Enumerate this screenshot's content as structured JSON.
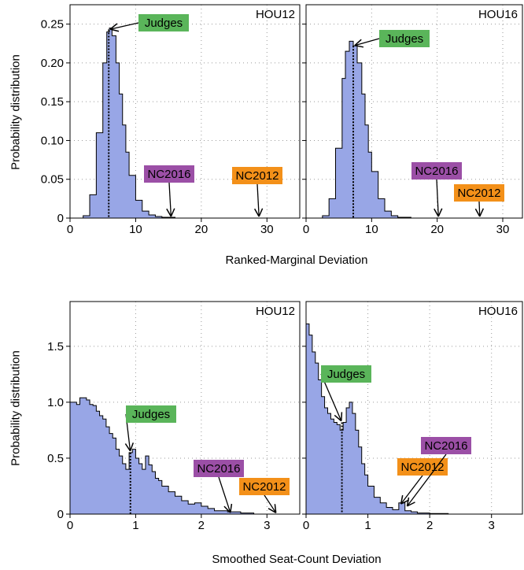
{
  "colors": {
    "fill": "#98a6e6",
    "stroke": "#000000",
    "judges": "#5ab55a",
    "nc2016": "#9b4fa6",
    "nc2012": "#f39019",
    "grid": "#9a9a9a"
  },
  "labels": {
    "top_xlabel": "Ranked-Marginal Deviation",
    "bottom_xlabel": "Smoothed Seat-Count Deviation",
    "top_ylabel": "Probability distribution",
    "bottom_ylabel": "Probability distribution"
  },
  "chart_data": [
    {
      "type": "histogram",
      "panel": "top-left",
      "title": "HOU12",
      "xlim": [
        0,
        35
      ],
      "ylim": [
        0,
        0.275
      ],
      "xticks": [
        0,
        10,
        20,
        30
      ],
      "yticks": [
        0,
        0.05,
        0.1,
        0.15,
        0.2,
        0.25
      ],
      "ytick_labels": [
        "0",
        "0.05",
        "0.10",
        "0.15",
        "0.20",
        "0.25"
      ],
      "grid": true,
      "curve": {
        "x": [
          1,
          2,
          3,
          4,
          5,
          5.6,
          6,
          6.4,
          7,
          7.5,
          8,
          8.5,
          9,
          10,
          11,
          12,
          13,
          14,
          16
        ],
        "y": [
          0,
          0.003,
          0.03,
          0.11,
          0.2,
          0.24,
          0.245,
          0.235,
          0.2,
          0.16,
          0.12,
          0.085,
          0.055,
          0.023,
          0.009,
          0.004,
          0.002,
          0.001,
          0
        ]
      },
      "markers": [
        {
          "label": "Judges",
          "x": 5.9,
          "y": 0.243,
          "color": "judges",
          "dotted": true
        },
        {
          "label": "NC2016",
          "x": 15.4,
          "y": 0,
          "color": "nc2016"
        },
        {
          "label": "NC2012",
          "x": 28.8,
          "y": 0,
          "color": "nc2012"
        }
      ]
    },
    {
      "type": "histogram",
      "panel": "top-right",
      "title": "HOU16",
      "xlim": [
        0,
        33
      ],
      "ylim": [
        0,
        0.275
      ],
      "xticks": [
        0,
        10,
        20,
        30
      ],
      "yticks": [
        0,
        0.05,
        0.1,
        0.15,
        0.2,
        0.25
      ],
      "grid": true,
      "curve": {
        "x": [
          1.5,
          2.5,
          3.5,
          4.5,
          5.5,
          6,
          6.6,
          7.2,
          7.8,
          8.5,
          9,
          9.5,
          10,
          11,
          12,
          13,
          14,
          16
        ],
        "y": [
          0,
          0.003,
          0.025,
          0.09,
          0.18,
          0.215,
          0.228,
          0.222,
          0.2,
          0.16,
          0.12,
          0.085,
          0.06,
          0.025,
          0.009,
          0.003,
          0.001,
          0
        ]
      },
      "markers": [
        {
          "label": "Judges",
          "x": 7.2,
          "y": 0.222,
          "color": "judges",
          "dotted": true
        },
        {
          "label": "NC2016",
          "x": 20.2,
          "y": 0,
          "color": "nc2016"
        },
        {
          "label": "NC2012",
          "x": 26.5,
          "y": 0,
          "color": "nc2012"
        }
      ]
    },
    {
      "type": "histogram",
      "panel": "bottom-left",
      "title": "HOU12",
      "xlim": [
        0,
        3.5
      ],
      "ylim": [
        0,
        1.9
      ],
      "xticks": [
        0,
        1,
        2,
        3
      ],
      "yticks": [
        0,
        0.5,
        1.0,
        1.5
      ],
      "ytick_labels": [
        "0",
        "0.5",
        "1.0",
        "1.5"
      ],
      "grid": true,
      "curve": {
        "x": [
          0,
          0.1,
          0.15,
          0.2,
          0.25,
          0.3,
          0.35,
          0.4,
          0.45,
          0.5,
          0.55,
          0.6,
          0.65,
          0.7,
          0.75,
          0.8,
          0.85,
          0.9,
          0.95,
          1.0,
          1.05,
          1.1,
          1.15,
          1.2,
          1.25,
          1.3,
          1.35,
          1.4,
          1.5,
          1.6,
          1.7,
          1.8,
          1.9,
          2.0,
          2.1,
          2.2,
          2.4,
          2.6,
          2.8
        ],
        "y": [
          1.0,
          0.98,
          1.04,
          1.04,
          1.02,
          0.98,
          0.97,
          0.92,
          0.88,
          0.85,
          0.78,
          0.72,
          0.68,
          0.58,
          0.52,
          0.45,
          0.4,
          0.55,
          0.58,
          0.5,
          0.45,
          0.4,
          0.52,
          0.44,
          0.38,
          0.32,
          0.3,
          0.25,
          0.2,
          0.16,
          0.12,
          0.09,
          0.1,
          0.07,
          0.05,
          0.03,
          0.02,
          0.01,
          0
        ]
      },
      "markers": [
        {
          "label": "Judges",
          "x": 0.92,
          "y": 0.55,
          "color": "judges",
          "dotted": true
        },
        {
          "label": "NC2016",
          "x": 2.45,
          "y": 0,
          "color": "nc2016"
        },
        {
          "label": "NC2012",
          "x": 3.15,
          "y": 0,
          "color": "nc2012"
        }
      ]
    },
    {
      "type": "histogram",
      "panel": "bottom-right",
      "title": "HOU16",
      "xlim": [
        0,
        3.5
      ],
      "ylim": [
        0,
        1.9
      ],
      "xticks": [
        0,
        1,
        2,
        3
      ],
      "yticks": [
        0,
        0.5,
        1.0,
        1.5
      ],
      "grid": true,
      "curve": {
        "x": [
          0,
          0.05,
          0.1,
          0.15,
          0.2,
          0.25,
          0.3,
          0.35,
          0.4,
          0.45,
          0.5,
          0.55,
          0.6,
          0.65,
          0.7,
          0.75,
          0.8,
          0.85,
          0.9,
          0.95,
          1.0,
          1.1,
          1.2,
          1.3,
          1.4,
          1.5,
          1.6,
          1.7,
          1.8,
          2.0,
          2.3
        ],
        "y": [
          1.7,
          1.6,
          1.45,
          1.35,
          1.2,
          1.05,
          0.95,
          0.9,
          0.85,
          0.82,
          0.8,
          0.75,
          0.82,
          0.95,
          1.0,
          0.9,
          0.75,
          0.6,
          0.45,
          0.35,
          0.25,
          0.15,
          0.1,
          0.06,
          0.04,
          0.1,
          0.03,
          0.02,
          0.01,
          0.005,
          0
        ]
      },
      "markers": [
        {
          "label": "Judges",
          "x": 0.58,
          "y": 0.82,
          "color": "judges",
          "dotted": true
        },
        {
          "label": "NC2012",
          "x": 1.52,
          "y": 0.08,
          "color": "nc2012"
        },
        {
          "label": "NC2016",
          "x": 1.62,
          "y": 0.06,
          "color": "nc2016"
        }
      ]
    }
  ]
}
